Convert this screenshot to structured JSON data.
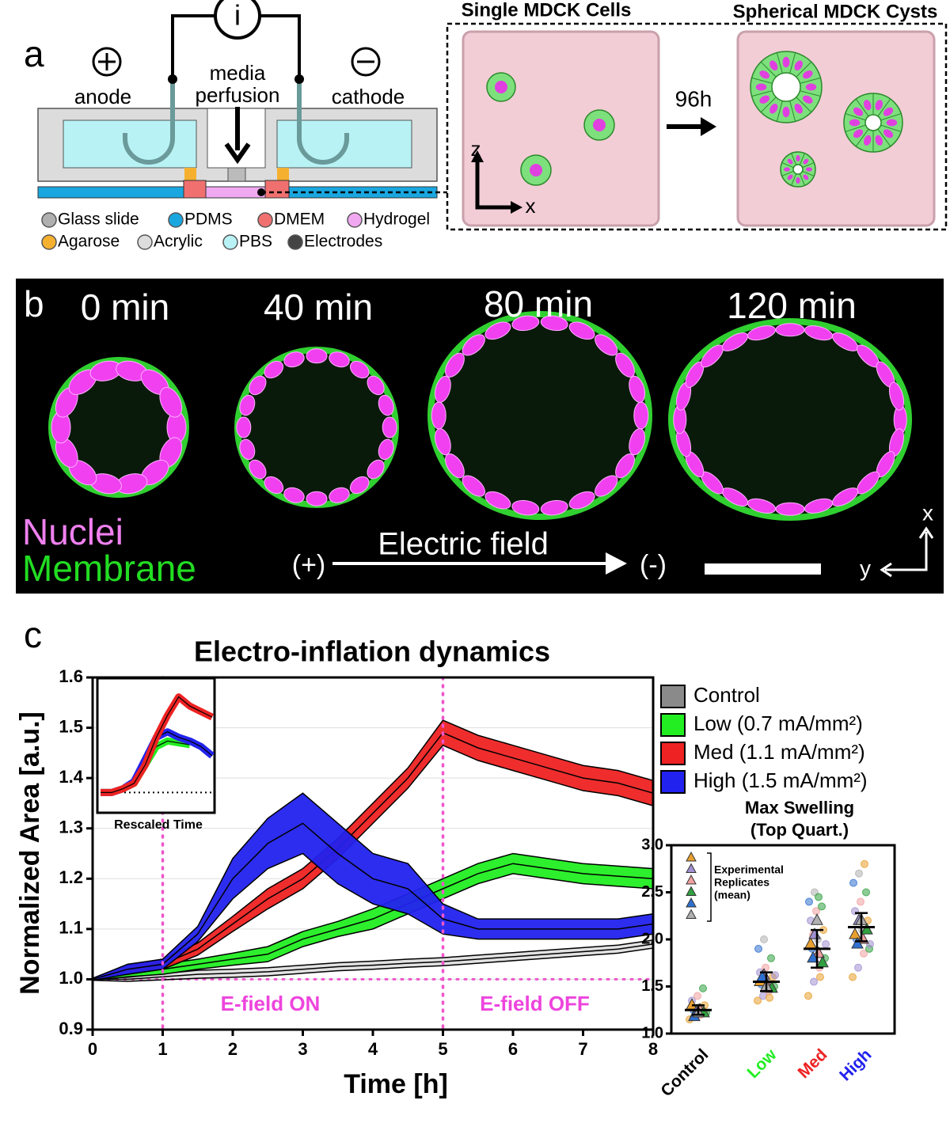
{
  "panel_a": {
    "label": "a",
    "current": "i",
    "anode": "anode",
    "media": "media",
    "perfusion": "perfusion",
    "cathode": "cathode",
    "legend": [
      {
        "name": "Glass slide",
        "color": "#b0b0b0"
      },
      {
        "name": "PDMS",
        "color": "#1aa7e0"
      },
      {
        "name": "DMEM",
        "color": "#f07070"
      },
      {
        "name": "Hydrogel",
        "color": "#f0a8f0"
      },
      {
        "name": "Agarose",
        "color": "#f5b030"
      },
      {
        "name": "Acrylic",
        "color": "#dddddd"
      },
      {
        "name": "PBS",
        "color": "#b8f2f5"
      },
      {
        "name": "Electrodes",
        "color": "#444444"
      }
    ],
    "single_title": "Single MDCK Cells",
    "cyst_title": "Spherical MDCK Cysts",
    "arrow_label": "96h",
    "axis_z": "z",
    "axis_x": "x"
  },
  "panel_b": {
    "label": "b",
    "times": [
      "0 min",
      "40 min",
      "80 min",
      "120 min"
    ],
    "nuclei": "Nuclei",
    "membrane": "Membrane",
    "anode": "(+)",
    "field": "Electric field",
    "cathode": "(-)",
    "axis_x": "x",
    "axis_y": "y"
  },
  "panel_c_label": "c",
  "chart_data": [
    {
      "type": "band",
      "title": "Electro-inflation dynamics",
      "xlabel": "Time [h]",
      "ylabel": "Normalized Area [a.u.]",
      "x": [
        0,
        0.5,
        1,
        1.5,
        2,
        2.5,
        3,
        3.5,
        4,
        4.5,
        5,
        5.5,
        6,
        6.5,
        7,
        7.5,
        8
      ],
      "xlim": [
        0,
        8
      ],
      "xticks": [
        0,
        1,
        2,
        3,
        4,
        5,
        6,
        7,
        8
      ],
      "ylim": [
        0.9,
        1.6
      ],
      "yticks": [
        0.9,
        {
          "value": 1,
          "label": "1.0"
        },
        1.1,
        1.2,
        1.3,
        1.4,
        1.5,
        1.6
      ],
      "grid": true,
      "vlines": [
        1,
        5
      ],
      "hline": 1,
      "annotations": [
        "E-field ON",
        "E-field OFF"
      ],
      "legend": "right",
      "series": [
        {
          "name": "Control",
          "color": "#8a8a8a",
          "values": [
            1.0,
            1.0,
            1.005,
            1.01,
            1.012,
            1.015,
            1.02,
            1.025,
            1.028,
            1.032,
            1.035,
            1.04,
            1.045,
            1.05,
            1.055,
            1.06,
            1.07
          ],
          "errors": [
            0.002,
            0.004,
            0.006,
            0.008,
            0.008,
            0.008,
            0.008,
            0.008,
            0.008,
            0.008,
            0.008,
            0.008,
            0.008,
            0.008,
            0.008,
            0.008,
            0.008
          ]
        },
        {
          "name": "Low (0.7 mA/mm²)",
          "color": "#22ee22",
          "values": [
            1.0,
            1.01,
            1.02,
            1.03,
            1.04,
            1.05,
            1.08,
            1.1,
            1.12,
            1.15,
            1.18,
            1.21,
            1.23,
            1.22,
            1.21,
            1.205,
            1.2
          ],
          "errors": [
            0.002,
            0.005,
            0.01,
            0.01,
            0.012,
            0.015,
            0.015,
            0.015,
            0.02,
            0.02,
            0.02,
            0.02,
            0.02,
            0.02,
            0.02,
            0.02,
            0.02
          ]
        },
        {
          "name": "Med (1.1 mA/mm²)",
          "color": "#ee2222",
          "values": [
            1.0,
            1.02,
            1.03,
            1.06,
            1.11,
            1.16,
            1.2,
            1.26,
            1.33,
            1.4,
            1.49,
            1.46,
            1.44,
            1.42,
            1.4,
            1.39,
            1.37
          ],
          "errors": [
            0.002,
            0.008,
            0.01,
            0.012,
            0.015,
            0.02,
            0.02,
            0.02,
            0.02,
            0.02,
            0.025,
            0.025,
            0.025,
            0.025,
            0.025,
            0.025,
            0.025
          ]
        },
        {
          "name": "High (1.5 mA/mm²)",
          "color": "#2222ee",
          "values": [
            1.0,
            1.02,
            1.03,
            1.09,
            1.2,
            1.27,
            1.31,
            1.25,
            1.2,
            1.18,
            1.12,
            1.1,
            1.1,
            1.1,
            1.1,
            1.1,
            1.11
          ],
          "errors": [
            0.002,
            0.01,
            0.01,
            0.015,
            0.04,
            0.05,
            0.06,
            0.06,
            0.05,
            0.05,
            0.03,
            0.02,
            0.02,
            0.02,
            0.02,
            0.02,
            0.02
          ]
        }
      ]
    },
    {
      "type": "line",
      "xlabel": "Rescaled Time",
      "x": [
        0,
        1,
        2,
        3,
        4,
        5,
        6,
        7,
        8,
        9,
        10
      ],
      "xlim": [
        0,
        10
      ],
      "ylim": [
        0.95,
        1.6
      ],
      "hline": 1,
      "series": [
        {
          "color": "#22ee22",
          "values": [
            1.0,
            1.0,
            1.02,
            1.05,
            1.15,
            1.25,
            1.28,
            1.27,
            1.26,
            null,
            null
          ]
        },
        {
          "color": "#2222ee",
          "values": [
            1.0,
            1.0,
            1.02,
            1.06,
            1.18,
            1.3,
            1.33,
            1.3,
            1.28,
            1.25,
            1.2
          ]
        },
        {
          "color": "#ee2222",
          "values": [
            1.0,
            1.0,
            1.02,
            1.05,
            1.15,
            1.3,
            1.42,
            1.52,
            1.47,
            1.44,
            1.41
          ]
        }
      ]
    },
    {
      "type": "strip",
      "title": "Max Swelling",
      "subtitle": "(Top Quart.)",
      "categories": [
        "Control",
        "Low",
        "Med",
        "High"
      ],
      "colors": [
        "#000000",
        "#22ee22",
        "#ee2222",
        "#2222ee"
      ],
      "replicate_colors": [
        "#e8a030",
        "#a090d0",
        "#f0a0a0",
        "#30a040",
        "#3070d0",
        "#b0b0b0"
      ],
      "annotation": [
        "Experimental",
        "Replicates",
        "(mean)"
      ],
      "ylim": [
        1.0,
        3.0
      ],
      "yticks": [
        {
          "value": 1,
          "label": "1.0"
        },
        1.5,
        {
          "value": 2,
          "label": "2.0"
        },
        2.5,
        {
          "value": 3,
          "label": "3.0"
        }
      ],
      "series": [
        {
          "points": [
            1.15,
            1.18,
            1.2,
            1.22,
            1.25,
            1.28,
            1.3,
            1.35,
            1.4,
            1.48
          ],
          "replicate_means": [
            1.3,
            1.22,
            1.25,
            1.22,
            1.18,
            1.22
          ],
          "mean": 1.25,
          "error": 0.05
        },
        {
          "points": [
            1.35,
            1.4,
            1.45,
            1.5,
            1.52,
            1.55,
            1.6,
            1.65,
            1.7,
            1.8,
            1.9,
            2.0,
            1.38,
            1.62
          ],
          "replicate_means": [
            1.55,
            1.62,
            1.5,
            1.48,
            1.6,
            1.5
          ],
          "mean": 1.55,
          "error": 0.1
        },
        {
          "points": [
            1.4,
            1.55,
            1.7,
            1.8,
            1.9,
            2.0,
            2.1,
            2.2,
            2.3,
            2.35,
            2.4,
            2.5,
            1.6,
            1.95,
            2.05,
            2.45
          ],
          "replicate_means": [
            1.95,
            2.05,
            1.85,
            1.75,
            1.8,
            2.2
          ],
          "mean": 1.9,
          "error": 0.2
        },
        {
          "points": [
            1.6,
            1.7,
            1.85,
            1.9,
            2.0,
            2.1,
            2.2,
            2.3,
            2.4,
            2.5,
            2.6,
            2.7,
            2.8,
            1.95
          ],
          "replicate_means": [
            2.05,
            2.2,
            2.0,
            2.1,
            1.95,
            2.2
          ],
          "mean": 2.13,
          "error": 0.15
        }
      ]
    }
  ]
}
